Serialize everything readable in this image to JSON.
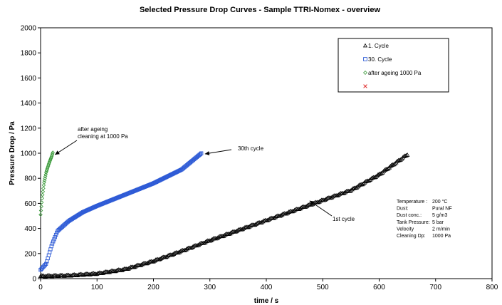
{
  "chart_data": {
    "type": "scatter",
    "title": "Selected Pressure Drop Curves - Sample TTRI-Nomex - overview",
    "xlabel": "time / s",
    "ylabel": "Pressure Drop / Pa",
    "xlim": [
      0,
      800
    ],
    "ylim": [
      0,
      2000
    ],
    "xticks": [
      0,
      100,
      200,
      300,
      400,
      500,
      600,
      700,
      800
    ],
    "yticks": [
      0,
      200,
      400,
      600,
      800,
      1000,
      1200,
      1400,
      1600,
      1800,
      2000
    ],
    "grid": false,
    "legend_position": "top-right",
    "legend": [
      {
        "label": "1. Cycle",
        "marker": "triangle",
        "color": "#000000"
      },
      {
        "label": "30. Cycle",
        "marker": "square",
        "color": "#2e5bd6"
      },
      {
        "label": "after ageing 1000 Pa",
        "marker": "diamond",
        "color": "#3a9a3a"
      },
      {
        "label": "",
        "marker": "x",
        "color": "#e03030"
      }
    ],
    "series": [
      {
        "name": "1. Cycle",
        "color": "#000000",
        "marker": "triangle",
        "key_points": [
          [
            0,
            20
          ],
          [
            50,
            25
          ],
          [
            100,
            40
          ],
          [
            150,
            75
          ],
          [
            200,
            140
          ],
          [
            250,
            220
          ],
          [
            300,
            305
          ],
          [
            350,
            385
          ],
          [
            400,
            465
          ],
          [
            450,
            545
          ],
          [
            500,
            625
          ],
          [
            550,
            705
          ],
          [
            600,
            830
          ],
          [
            650,
            990
          ]
        ]
      },
      {
        "name": "30. Cycle",
        "color": "#2e5bd6",
        "marker": "square",
        "key_points": [
          [
            0,
            70
          ],
          [
            10,
            120
          ],
          [
            20,
            270
          ],
          [
            30,
            380
          ],
          [
            50,
            460
          ],
          [
            75,
            530
          ],
          [
            100,
            580
          ],
          [
            150,
            670
          ],
          [
            200,
            760
          ],
          [
            250,
            870
          ],
          [
            285,
            1000
          ]
        ]
      },
      {
        "name": "after ageing 1000 Pa",
        "color": "#3a9a3a",
        "marker": "diamond",
        "key_points": [
          [
            0,
            510
          ],
          [
            3,
            650
          ],
          [
            6,
            760
          ],
          [
            10,
            850
          ],
          [
            15,
            920
          ],
          [
            20,
            980
          ],
          [
            22,
            1010
          ]
        ]
      }
    ],
    "annotations": [
      {
        "text": "after ageing",
        "text2": "cleaning at 1000 Pa",
        "target": [
          23,
          1000
        ]
      },
      {
        "text": "30th cycle",
        "target": [
          290,
          1000
        ]
      },
      {
        "text": "1st cycle",
        "target": [
          478,
          632
        ]
      }
    ],
    "info_box": [
      {
        "label": "Temperature :",
        "value": "200 °C"
      },
      {
        "label": "Dust:",
        "value": "Pural NF"
      },
      {
        "label": "Dust conc.:",
        "value": "5 g/m3"
      },
      {
        "label": "Tank Pressure:",
        "value": "5 bar"
      },
      {
        "label": "Velocity",
        "value": "2 m/min"
      },
      {
        "label": "Cleaning Dp:",
        "value": "1000 Pa"
      }
    ]
  }
}
